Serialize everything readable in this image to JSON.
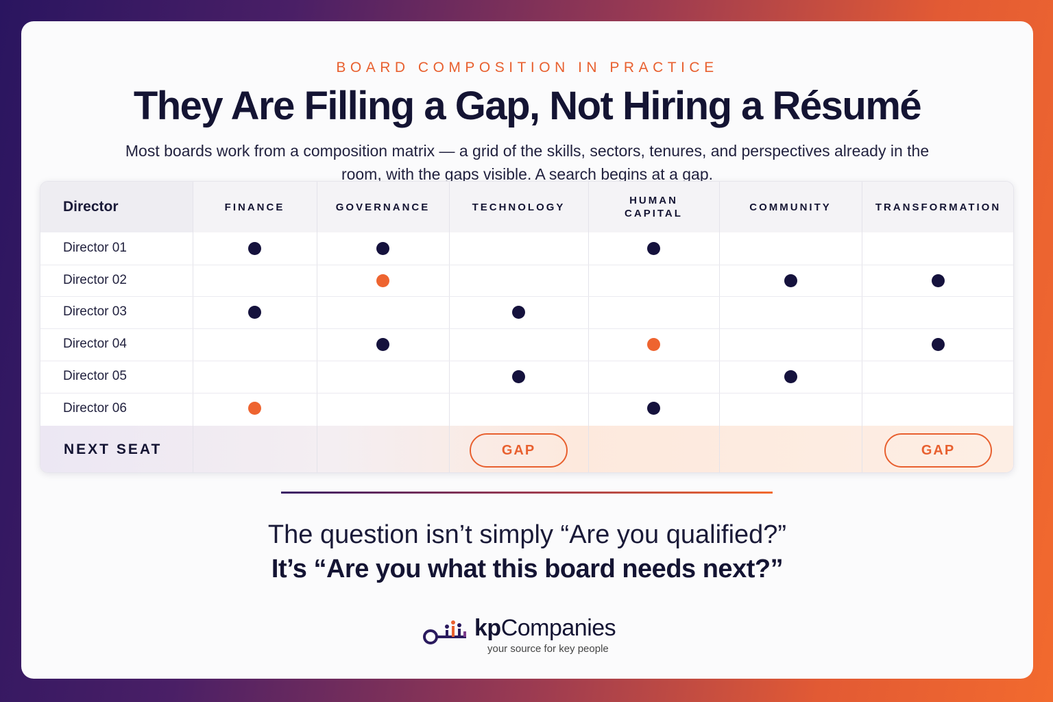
{
  "eyebrow": "BOARD COMPOSITION IN PRACTICE",
  "title": "They Are Filling a Gap, Not Hiring a Résumé",
  "subtitle": "Most boards work from a composition matrix — a grid of the skills, sectors, tenures, and perspectives already in the room, with the gaps visible. A search begins at a gap.",
  "matrix": {
    "corner_label": "Director",
    "columns": [
      "FINANCE",
      "GOVERNANCE",
      "TECHNOLOGY",
      "HUMAN CAPITAL",
      "COMMUNITY",
      "TRANSFORMATION"
    ],
    "rows": [
      {
        "name": "Director 01",
        "cells": [
          "navy",
          "navy",
          "",
          "navy",
          "",
          ""
        ]
      },
      {
        "name": "Director 02",
        "cells": [
          "",
          "orange",
          "",
          "",
          "navy",
          "navy"
        ]
      },
      {
        "name": "Director 03",
        "cells": [
          "navy",
          "",
          "navy",
          "",
          "",
          ""
        ]
      },
      {
        "name": "Director 04",
        "cells": [
          "",
          "navy",
          "",
          "orange",
          "",
          "navy"
        ]
      },
      {
        "name": "Director 05",
        "cells": [
          "",
          "",
          "navy",
          "",
          "navy",
          ""
        ]
      },
      {
        "name": "Director 06",
        "cells": [
          "orange",
          "",
          "",
          "navy",
          "",
          ""
        ]
      }
    ],
    "next_seat_label": "NEXT SEAT",
    "next_seat": [
      "",
      "",
      "GAP",
      "",
      "",
      "GAP"
    ],
    "colors": {
      "navy": "#15123d",
      "orange": "#ee6430"
    }
  },
  "question_line1": "The question isn’t simply “Are you qualified?”",
  "question_line2": "It’s “Are you what this board needs next?”",
  "logo": {
    "name_bold": "kp",
    "name_rest": "Companies",
    "tagline": "your source for key people"
  }
}
